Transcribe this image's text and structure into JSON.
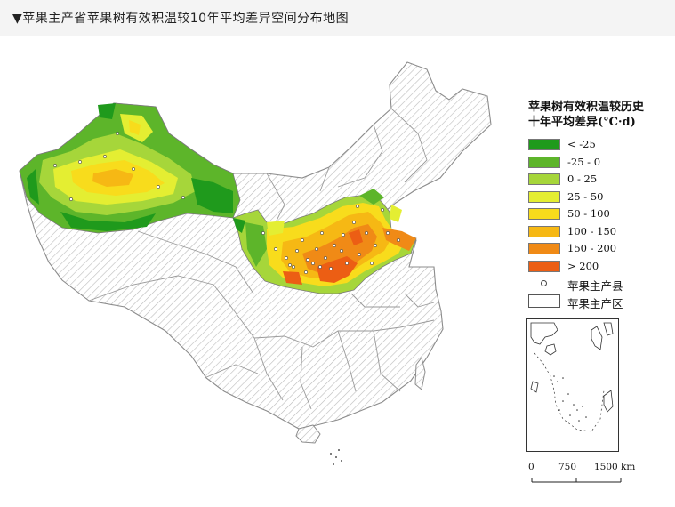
{
  "header": {
    "title": "▼苹果主产省苹果树有效积温较10年平均差异空间分布地图"
  },
  "legend": {
    "title_line1": "苹果树有效积温较历史",
    "title_line2": "十年平均差异(°C·d)",
    "items": [
      {
        "label": "< -25",
        "color": "#1f9a1c"
      },
      {
        "label": "-25 - 0",
        "color": "#5db52a"
      },
      {
        "label": "0 - 25",
        "color": "#a6d63a"
      },
      {
        "label": "25 - 50",
        "color": "#e4ee32"
      },
      {
        "label": "50 - 100",
        "color": "#f8dc1c"
      },
      {
        "label": "100 - 150",
        "color": "#f6b814"
      },
      {
        "label": "150 - 200",
        "color": "#f08a16"
      },
      {
        "label": "> 200",
        "color": "#ec5e14"
      }
    ],
    "county_label": "苹果主产县",
    "region_label": "苹果主产区"
  },
  "scale": {
    "label_0": "0",
    "label_750": "750",
    "label_1500": "1500 km"
  },
  "colors": {
    "hatch": "#b8b8b8",
    "boundary": "#9a9a9a",
    "header_bg": "#f4f4f4"
  }
}
